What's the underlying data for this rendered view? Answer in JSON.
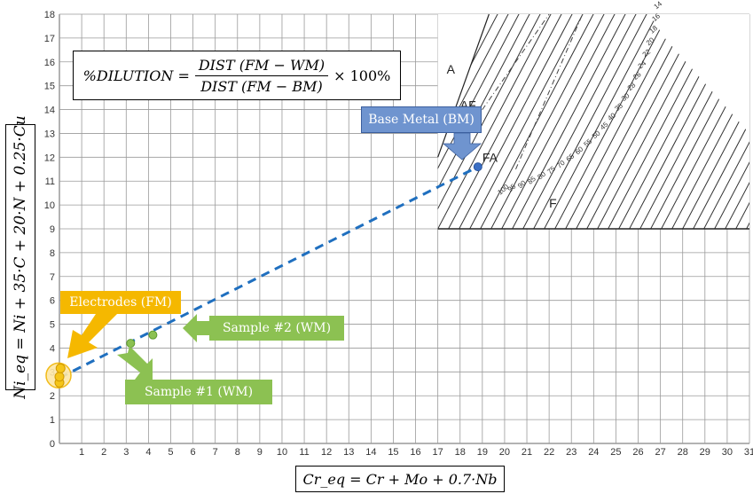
{
  "chart_data": {
    "type": "scatter",
    "title": "",
    "xlabel": "Cr_eq = Cr + Mo + 0.7·Nb",
    "ylabel": "Ni_eq = Ni + 35·C + 20·N + 0.25·Cu",
    "xlim": [
      0,
      31
    ],
    "ylim": [
      0,
      18
    ],
    "grid": true,
    "x_ticks": [
      "1",
      "2",
      "3",
      "4",
      "5",
      "6",
      "7",
      "8",
      "9",
      "10",
      "11",
      "12",
      "13",
      "14",
      "15",
      "16",
      "17",
      "18",
      "19",
      "20",
      "21",
      "22",
      "23",
      "24",
      "25",
      "26",
      "27",
      "28",
      "29",
      "30",
      "31"
    ],
    "y_ticks": [
      "0",
      "1",
      "2",
      "3",
      "4",
      "5",
      "6",
      "7",
      "8",
      "9",
      "10",
      "11",
      "12",
      "13",
      "14",
      "15",
      "16",
      "17",
      "18"
    ],
    "series": [
      {
        "name": "Electrodes (FM)",
        "points": [
          [
            0.0,
            2.55
          ],
          [
            0.0,
            2.8
          ],
          [
            0.05,
            3.15
          ]
        ],
        "color": "#f5c518"
      },
      {
        "name": "Sample #1 (WM)",
        "points": [
          [
            3.2,
            4.2
          ]
        ],
        "color": "#8cc152"
      },
      {
        "name": "Sample #2 (WM)",
        "points": [
          [
            4.2,
            4.55
          ]
        ],
        "color": "#8cc152"
      },
      {
        "name": "Base Metal (BM)",
        "points": [
          [
            18.8,
            11.6
          ]
        ],
        "color": "#3b6fc4"
      }
    ],
    "dilution_line": {
      "from": [
        0.0,
        2.75
      ],
      "to": [
        18.8,
        11.6
      ],
      "color": "#1f6fbf"
    },
    "region_labels": [
      "A",
      "AF",
      "FA",
      "F"
    ],
    "ferrite_numbers": [
      "0",
      "2",
      "4",
      "6",
      "8",
      "10",
      "12",
      "14",
      "16",
      "18",
      "20",
      "22",
      "24",
      "26",
      "28",
      "30",
      "35",
      "40",
      "45",
      "50",
      "55",
      "60",
      "65",
      "70",
      "75",
      "80",
      "85",
      "90",
      "95",
      "100"
    ]
  },
  "formula": {
    "lhs": "%DILUTION =",
    "numerator": "DIST (FM − WM)",
    "denominator": "DIST (FM − BM)",
    "rhs": "× 100%"
  },
  "labels": {
    "ylabel": "Ni_eq = Ni + 35·C + 20·N + 0.25·Cu",
    "xlabel": "Cr_eq = Cr + Mo + 0.7·Nb"
  },
  "callouts": {
    "electrodes": "Electrodes (FM)",
    "sample1": "Sample #1 (WM)",
    "sample2": "Sample #2 (WM)",
    "base_metal": "Base Metal (BM)"
  },
  "colors": {
    "electrodes": "#f5b800",
    "samples": "#8cc152",
    "base_metal": "#6f94cf",
    "dilution_line": "#1f6fbf",
    "grid": "#9a9a9a"
  }
}
